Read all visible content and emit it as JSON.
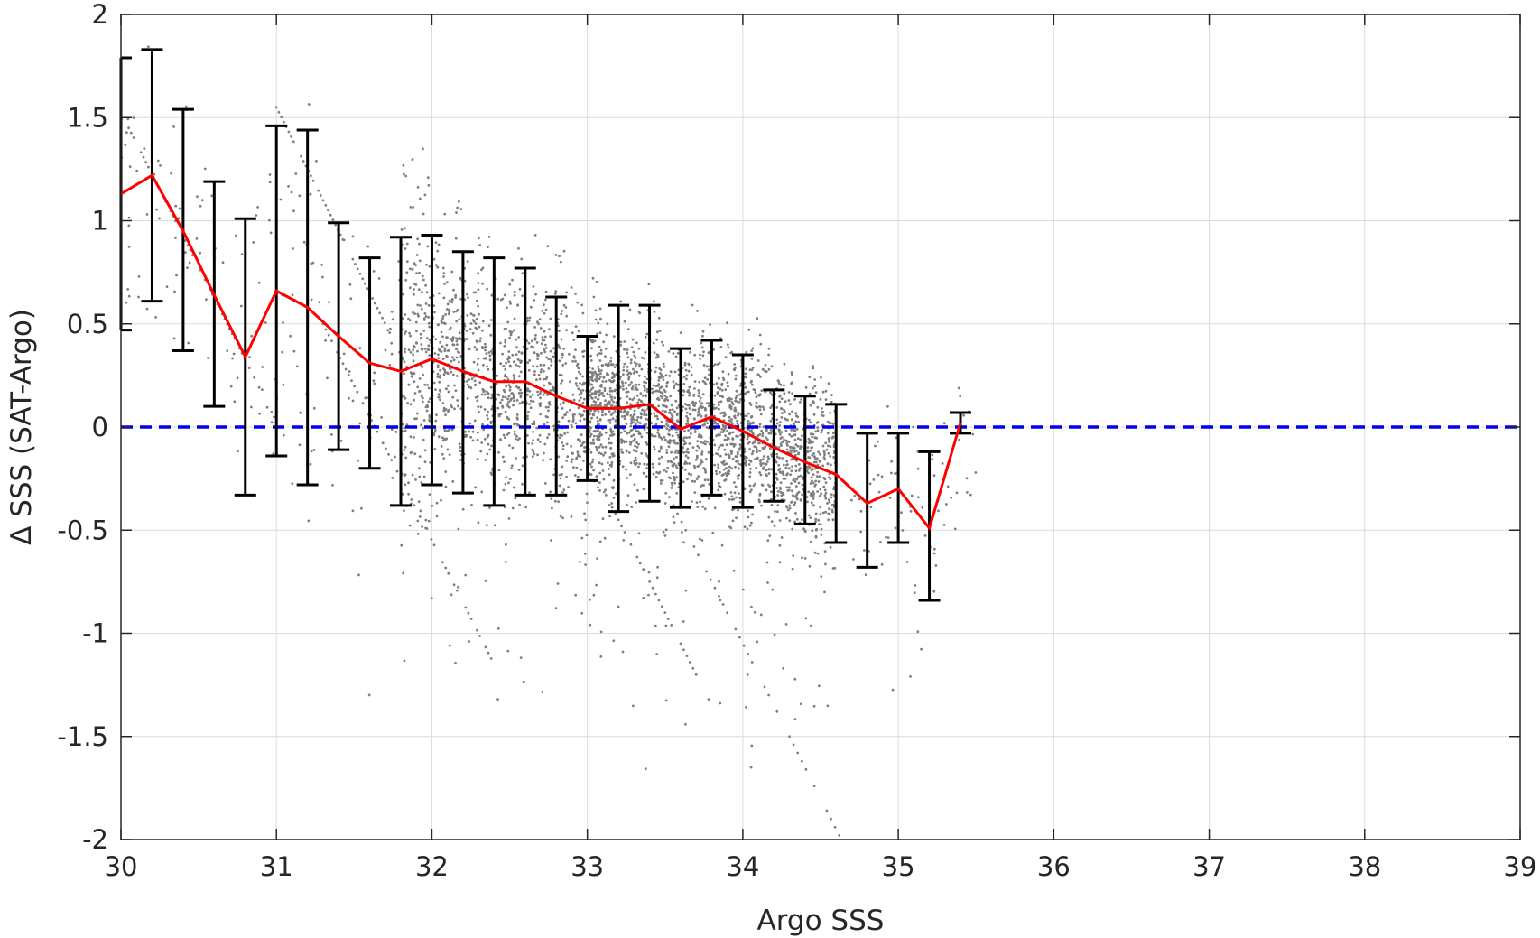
{
  "chart_data": {
    "type": "scatter",
    "title": "",
    "xlabel": "Argo SSS",
    "ylabel": "Δ SSS (SAT-Argo)",
    "xlim": [
      30,
      39
    ],
    "ylim": [
      -2,
      2
    ],
    "x_ticks": [
      30,
      31,
      32,
      33,
      34,
      35,
      36,
      37,
      38,
      39
    ],
    "y_ticks": [
      -2,
      -1.5,
      -1,
      -0.5,
      0,
      0.5,
      1,
      1.5,
      2
    ],
    "x_tick_labels": [
      "30",
      "31",
      "32",
      "33",
      "34",
      "35",
      "36",
      "37",
      "38",
      "39"
    ],
    "y_tick_labels": [
      "-2",
      "-1.5",
      "-1",
      "-0.5",
      "0",
      "0.5",
      "1",
      "1.5",
      "2"
    ],
    "grid": true,
    "legend": "none",
    "colors": {
      "scatter": "#7f7f7f",
      "mean_line": "#ff0000",
      "error_bars": "#000000",
      "zero_line": "#0000ee",
      "grid": "#dcdcdc",
      "axes": "#262626"
    },
    "series": [
      {
        "type": "errorbar_line",
        "x": [
          30.0,
          30.2,
          30.4,
          30.6,
          30.8,
          31.0,
          31.2,
          31.4,
          31.6,
          31.8,
          32.0,
          32.2,
          32.4,
          32.6,
          32.8,
          33.0,
          33.2,
          33.4,
          33.6,
          33.8,
          34.0,
          34.2,
          34.4,
          34.6,
          34.8,
          35.0,
          35.2,
          35.4
        ],
        "mean": [
          1.13,
          1.22,
          0.95,
          0.64,
          0.34,
          0.66,
          0.58,
          0.44,
          0.31,
          0.27,
          0.33,
          0.27,
          0.22,
          0.22,
          0.15,
          0.09,
          0.09,
          0.11,
          -0.01,
          0.05,
          -0.02,
          -0.1,
          -0.17,
          -0.23,
          -0.37,
          -0.3,
          -0.49,
          0.02
        ],
        "upper": [
          1.79,
          1.83,
          1.54,
          1.19,
          1.01,
          1.46,
          1.44,
          0.99,
          0.82,
          0.92,
          0.93,
          0.85,
          0.82,
          0.77,
          0.63,
          0.44,
          0.59,
          0.59,
          0.38,
          0.42,
          0.35,
          0.18,
          0.15,
          0.11,
          -0.03,
          -0.03,
          -0.12,
          0.07
        ],
        "lower": [
          0.47,
          0.61,
          0.37,
          0.1,
          -0.33,
          -0.14,
          -0.28,
          -0.11,
          -0.2,
          -0.38,
          -0.28,
          -0.32,
          -0.38,
          -0.33,
          -0.33,
          -0.26,
          -0.41,
          -0.36,
          -0.39,
          -0.33,
          -0.39,
          -0.36,
          -0.47,
          -0.56,
          -0.68,
          -0.56,
          -0.84,
          -0.03
        ]
      },
      {
        "type": "hline",
        "y": 0,
        "style": "dashed"
      }
    ],
    "scatter_cloud": {
      "description": "dense gray dot cloud of individual collocations",
      "x_range": [
        30.0,
        35.5
      ],
      "trend": {
        "y_at_30": 1.0,
        "slope": -0.27
      },
      "core_x_range": [
        33.0,
        34.5
      ],
      "point_count_approx": 3500
    }
  }
}
